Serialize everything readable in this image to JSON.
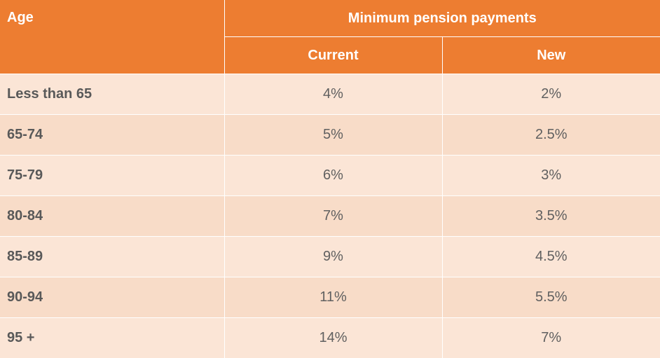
{
  "chart_data": {
    "type": "table",
    "header": {
      "age": "Age",
      "group": "Minimum pension payments",
      "current": "Current",
      "new": "New"
    },
    "rows": [
      {
        "age": "Less than 65",
        "current": "4%",
        "new": "2%"
      },
      {
        "age": "65-74",
        "current": "5%",
        "new": "2.5%"
      },
      {
        "age": "75-79",
        "current": "6%",
        "new": "3%"
      },
      {
        "age": "80-84",
        "current": "7%",
        "new": "3.5%"
      },
      {
        "age": "85-89",
        "current": "9%",
        "new": "4.5%"
      },
      {
        "age": "90-94",
        "current": "11%",
        "new": "5.5%"
      },
      {
        "age": "95 +",
        "current": "14%",
        "new": "7%"
      }
    ],
    "colors": {
      "header": "#ed7d31",
      "row_light": "#fbe5d6",
      "row_dark": "#f8dcc8"
    }
  }
}
